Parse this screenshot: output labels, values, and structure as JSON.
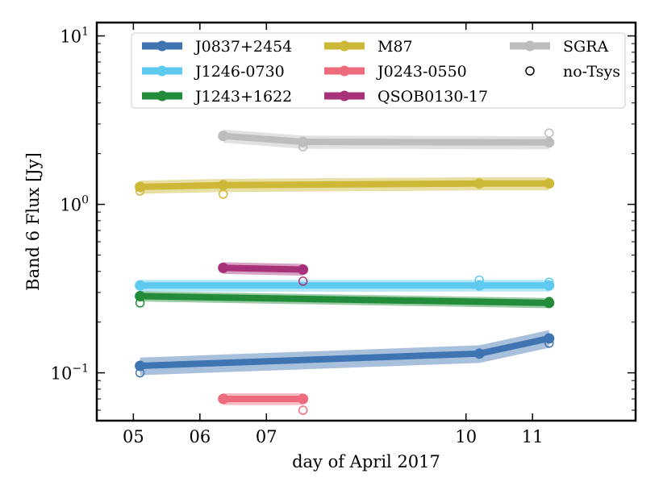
{
  "chart_data": {
    "type": "line",
    "xlabel": "day of April 2017",
    "ylabel": "Band 6 Flux [Jy]",
    "yscale": "log",
    "xlim": [
      4.5,
      12.6
    ],
    "ylim": [
      0.052,
      12.0
    ],
    "xticks": [
      {
        "value": 5.05,
        "label": "05"
      },
      {
        "value": 6.05,
        "label": "06"
      },
      {
        "value": 7.05,
        "label": "07"
      },
      {
        "value": 10.05,
        "label": "10"
      },
      {
        "value": 11.05,
        "label": "11"
      }
    ],
    "yticks": [
      {
        "value": 0.1,
        "base": "10",
        "exp": "−1"
      },
      {
        "value": 1,
        "base": "10",
        "exp": "0"
      },
      {
        "value": 10,
        "base": "10",
        "exp": "1"
      }
    ],
    "legend_location": "top",
    "series": [
      {
        "name": "J0837+2454",
        "color": "#3e74b1",
        "x": [
          5.15,
          10.25,
          11.3
        ],
        "y": [
          0.11,
          0.13,
          0.16
        ],
        "band_frac": 0.12,
        "no_tsys": {
          "x": [
            5.15,
            11.3
          ],
          "y": [
            0.1,
            0.15
          ]
        }
      },
      {
        "name": "J1246-0730",
        "color": "#5ecaf0",
        "x": [
          5.15,
          10.25,
          11.3
        ],
        "y": [
          0.33,
          0.33,
          0.33
        ],
        "band_frac": 0.08,
        "no_tsys": {
          "x": [
            10.25,
            11.3
          ],
          "y": [
            0.355,
            0.345
          ]
        }
      },
      {
        "name": "J1243+1622",
        "color": "#238c3a",
        "x": [
          5.15,
          11.3
        ],
        "y": [
          0.285,
          0.26
        ],
        "band_frac": 0.07,
        "no_tsys": {
          "x": [
            5.15,
            11.3
          ],
          "y": [
            0.26,
            0.265
          ]
        }
      },
      {
        "name": "M87",
        "color": "#cdb838",
        "x": [
          5.15,
          6.4,
          10.25,
          11.3
        ],
        "y": [
          1.27,
          1.3,
          1.33,
          1.33
        ],
        "band_frac": 0.09,
        "no_tsys": {
          "x": [
            5.15,
            6.4
          ],
          "y": [
            1.2,
            1.15
          ]
        }
      },
      {
        "name": "J0243-0550",
        "color": "#ee6b7d",
        "x": [
          6.4,
          7.6
        ],
        "y": [
          0.07,
          0.07
        ],
        "band_frac": 0.08,
        "no_tsys": {
          "x": [
            7.6
          ],
          "y": [
            0.06
          ]
        }
      },
      {
        "name": "QSOB0130-17",
        "color": "#a8327a",
        "x": [
          6.4,
          7.6
        ],
        "y": [
          0.42,
          0.41
        ],
        "band_frac": 0.08,
        "no_tsys": {
          "x": [
            7.6
          ],
          "y": [
            0.35
          ]
        }
      },
      {
        "name": "SGRA",
        "color": "#bdbdbd",
        "x": [
          6.4,
          7.6,
          11.3
        ],
        "y": [
          2.55,
          2.35,
          2.33
        ],
        "band_frac": 0.09,
        "no_tsys": {
          "x": [
            7.6,
            11.3
          ],
          "y": [
            2.2,
            2.65
          ]
        }
      }
    ],
    "legend": {
      "entries": [
        "J0837+2454",
        "J1246-0730",
        "J1243+1622",
        "M87",
        "J0243-0550",
        "QSOB0130-17",
        "SGRA",
        "no-Tsys"
      ],
      "marker_entry": "no-Tsys"
    }
  }
}
